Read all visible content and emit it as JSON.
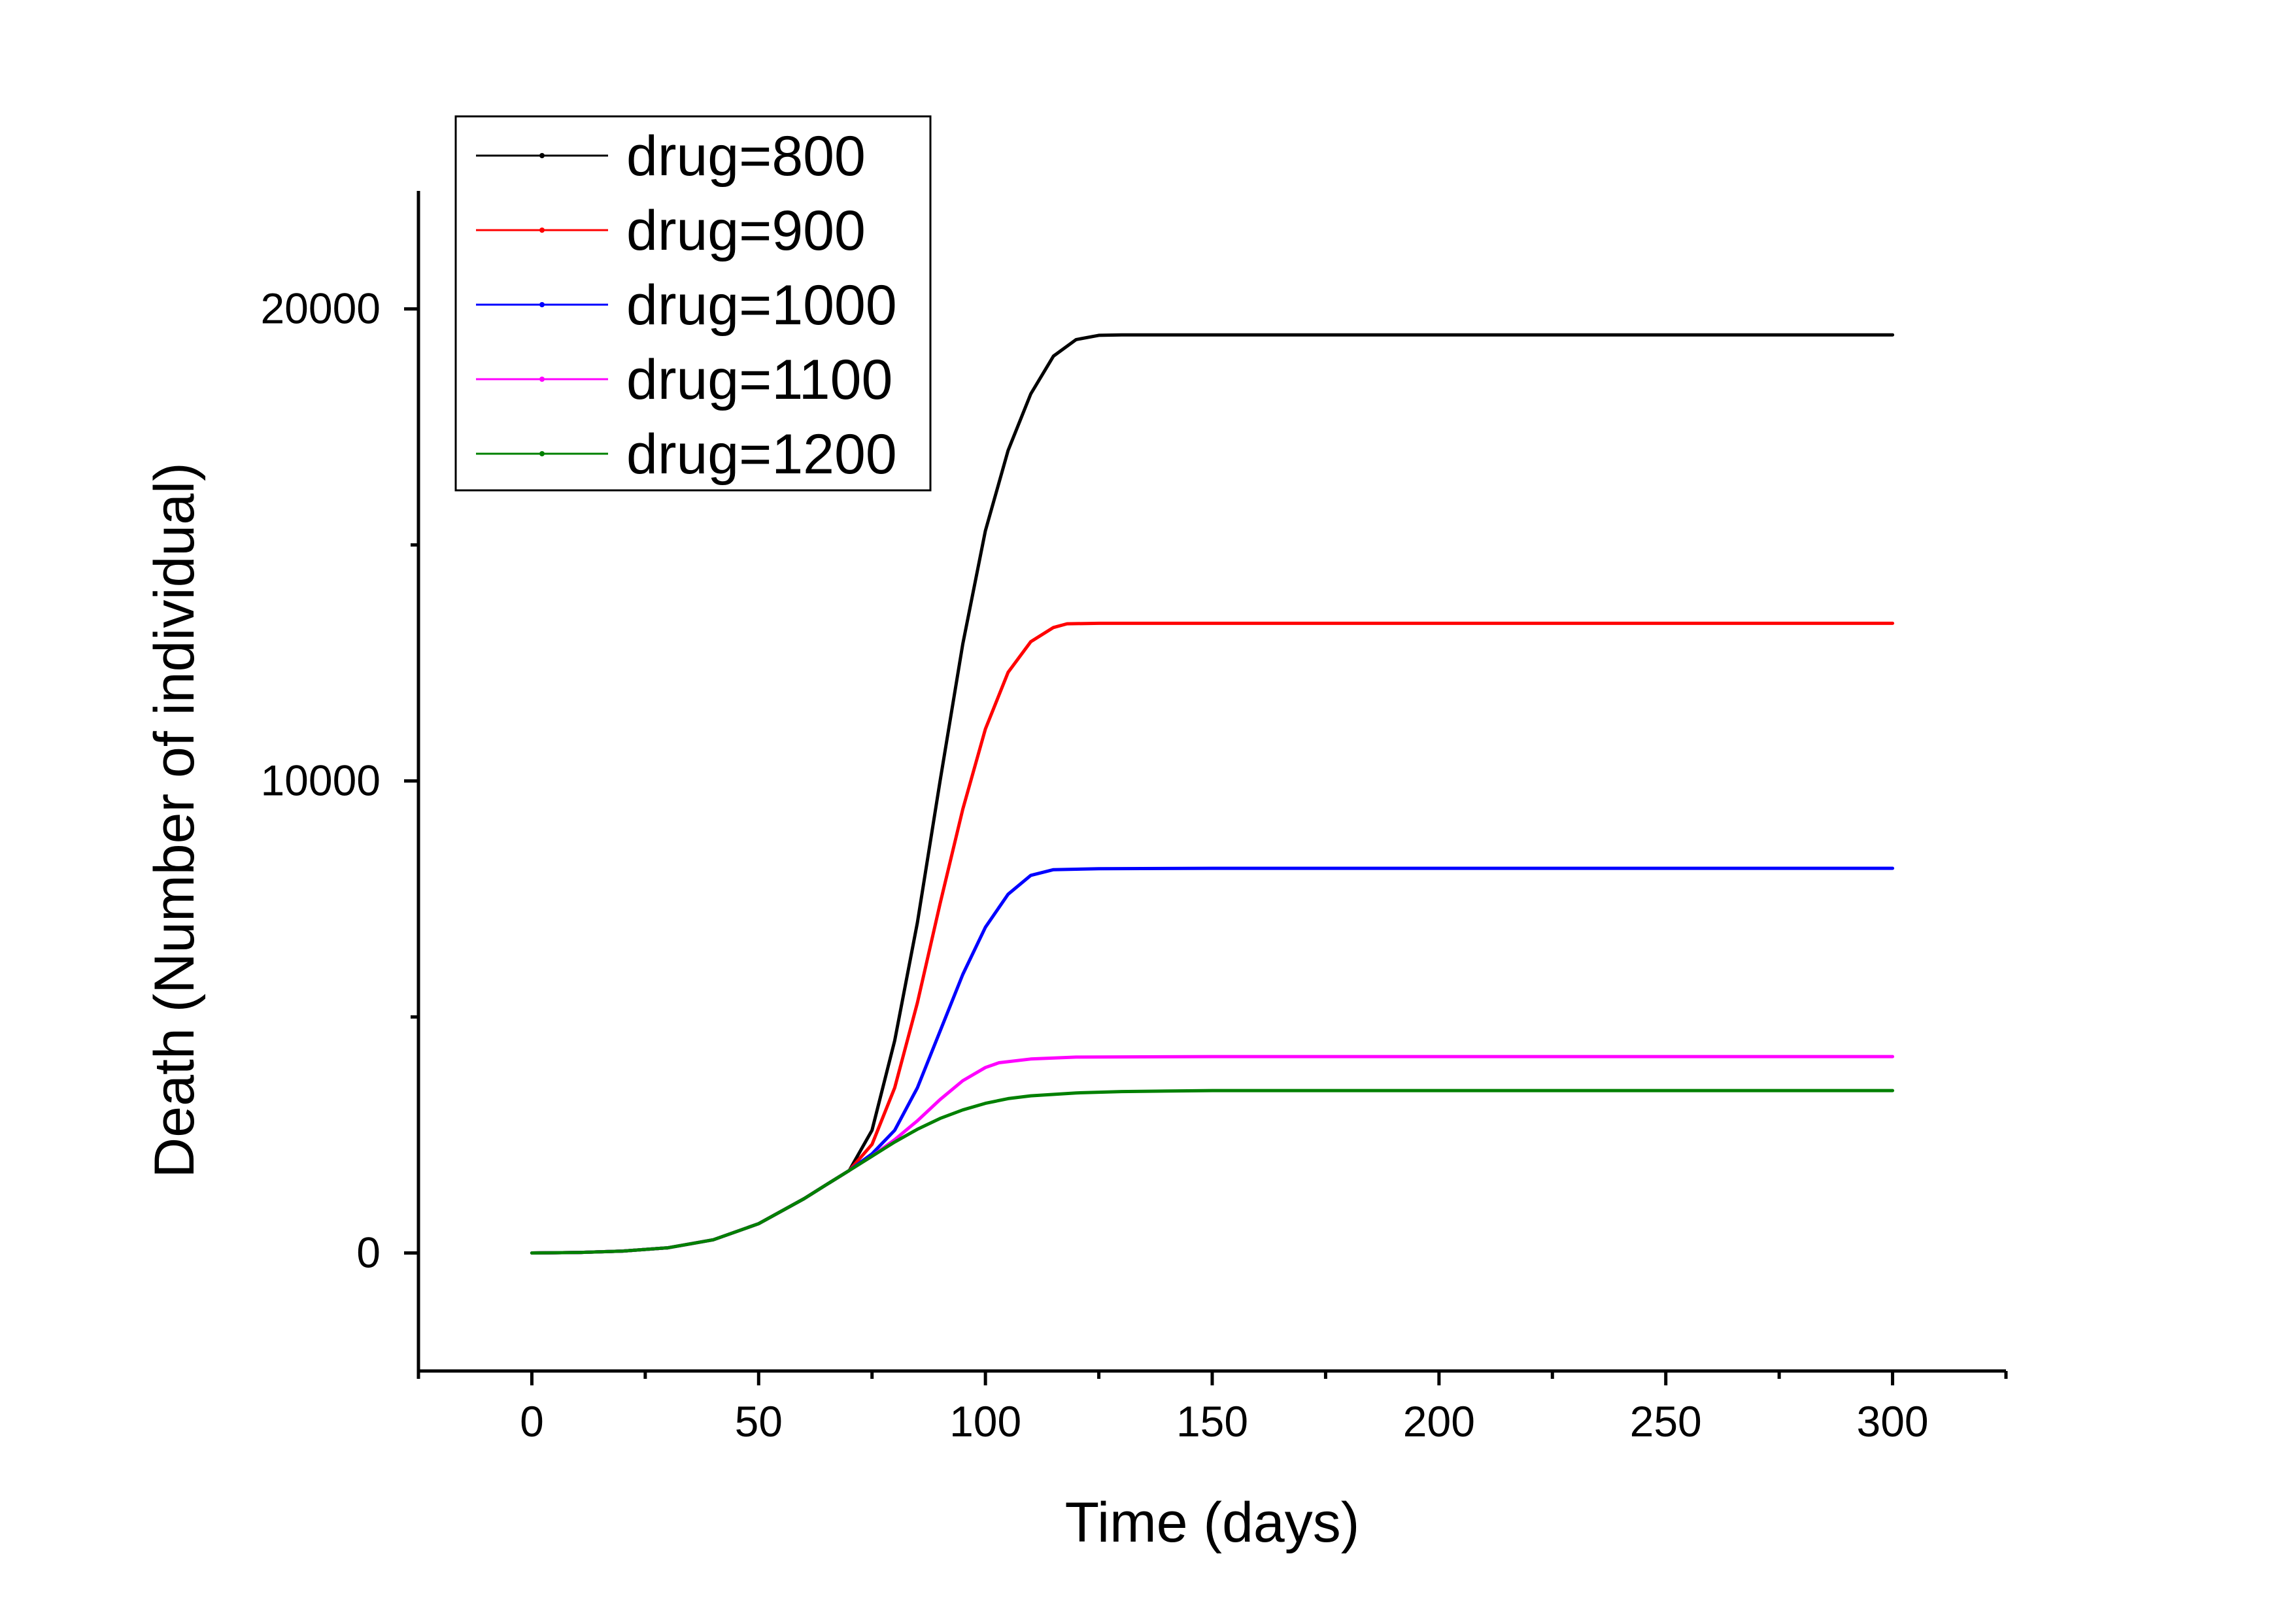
{
  "chart_data": {
    "type": "line",
    "title": "",
    "xlabel": "Time (days)",
    "ylabel": "Death (Number of individual)",
    "xlim": [
      -25,
      325
    ],
    "ylim": [
      -2500,
      22500
    ],
    "x_ticks": [
      0,
      50,
      100,
      150,
      200,
      250,
      300
    ],
    "x_minor_ticks": [
      -25,
      25,
      75,
      125,
      175,
      225,
      275,
      325
    ],
    "y_ticks": [
      0,
      10000,
      20000
    ],
    "y_minor_ticks": [
      5000,
      15000
    ],
    "grid": false,
    "legend_position": "top-left",
    "series": [
      {
        "name": "drug=800",
        "color": "#000000",
        "x": [
          0,
          10,
          20,
          30,
          40,
          50,
          60,
          65,
          70,
          75,
          80,
          85,
          90,
          95,
          100,
          105,
          110,
          115,
          120,
          125,
          130,
          150,
          200,
          250,
          300
        ],
        "y": [
          0,
          10,
          40,
          110,
          280,
          620,
          1150,
          1450,
          1750,
          2600,
          4500,
          7000,
          10000,
          12900,
          15300,
          17000,
          18200,
          19000,
          19350,
          19440,
          19450,
          19450,
          19450,
          19450,
          19450
        ]
      },
      {
        "name": "drug=900",
        "color": "#ff0000",
        "x": [
          0,
          10,
          20,
          30,
          40,
          50,
          60,
          65,
          70,
          75,
          80,
          85,
          90,
          95,
          100,
          105,
          110,
          115,
          118,
          125,
          150,
          200,
          250,
          300
        ],
        "y": [
          0,
          10,
          40,
          110,
          280,
          620,
          1150,
          1450,
          1750,
          2300,
          3500,
          5300,
          7400,
          9400,
          11100,
          12300,
          12950,
          13250,
          13330,
          13340,
          13340,
          13340,
          13340,
          13340
        ]
      },
      {
        "name": "drug=1000",
        "color": "#0000ff",
        "x": [
          0,
          10,
          20,
          30,
          40,
          50,
          60,
          65,
          70,
          75,
          80,
          85,
          90,
          95,
          100,
          105,
          110,
          115,
          125,
          150,
          200,
          250,
          300
        ],
        "y": [
          0,
          10,
          40,
          110,
          280,
          620,
          1150,
          1450,
          1750,
          2100,
          2600,
          3500,
          4700,
          5900,
          6900,
          7600,
          8000,
          8120,
          8140,
          8150,
          8150,
          8150,
          8150
        ]
      },
      {
        "name": "drug=1100",
        "color": "#ff00ff",
        "x": [
          0,
          10,
          20,
          30,
          40,
          50,
          60,
          65,
          70,
          75,
          80,
          85,
          90,
          95,
          100,
          103,
          110,
          120,
          150,
          200,
          250,
          300
        ],
        "y": [
          0,
          10,
          40,
          110,
          280,
          620,
          1150,
          1450,
          1750,
          2050,
          2400,
          2800,
          3250,
          3650,
          3930,
          4030,
          4110,
          4150,
          4160,
          4160,
          4160,
          4160
        ]
      },
      {
        "name": "drug=1200",
        "color": "#008000",
        "x": [
          0,
          10,
          20,
          30,
          40,
          50,
          60,
          65,
          70,
          75,
          80,
          85,
          90,
          95,
          100,
          105,
          110,
          120,
          130,
          150,
          200,
          250,
          300
        ],
        "y": [
          0,
          10,
          40,
          110,
          280,
          620,
          1150,
          1450,
          1750,
          2050,
          2350,
          2620,
          2850,
          3030,
          3170,
          3270,
          3330,
          3390,
          3420,
          3440,
          3440,
          3440,
          3440
        ]
      }
    ]
  }
}
